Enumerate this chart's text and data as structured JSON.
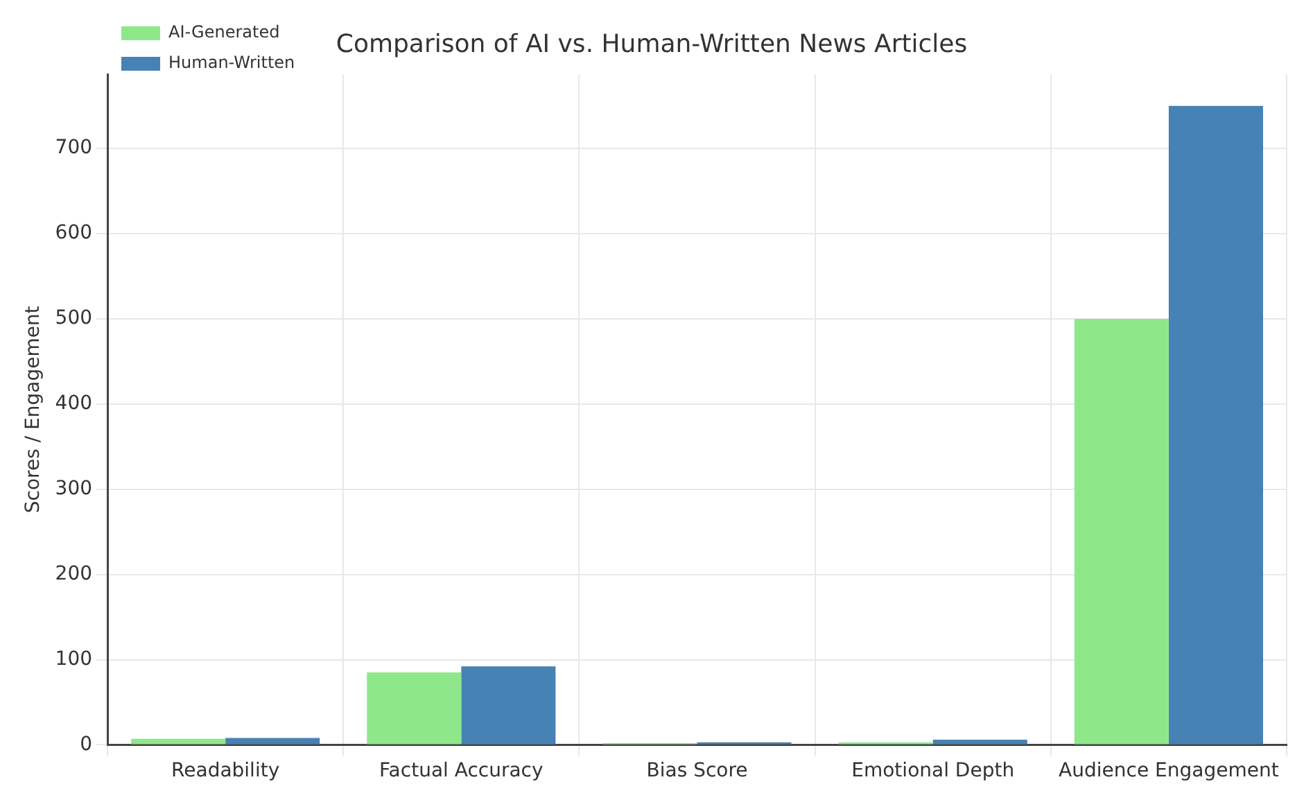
{
  "chart_data": {
    "type": "bar",
    "title": "Comparison of AI vs. Human-Written News Articles",
    "ylabel": "Scores / Engagement",
    "categories": [
      "Readability",
      "Factual Accuracy",
      "Bias Score",
      "Emotional Depth",
      "Audience Engagement"
    ],
    "series": [
      {
        "name": "AI-Generated",
        "color": "#8ee88a",
        "values": [
          7,
          85,
          2,
          3,
          500
        ]
      },
      {
        "name": "Human-Written",
        "color": "#4682b4",
        "values": [
          8,
          92,
          3,
          6,
          750
        ]
      }
    ],
    "ylim": [
      0,
      787
    ],
    "yticks": [
      0,
      100,
      200,
      300,
      400,
      500,
      600,
      700
    ],
    "grid": true,
    "legend": "top left"
  }
}
